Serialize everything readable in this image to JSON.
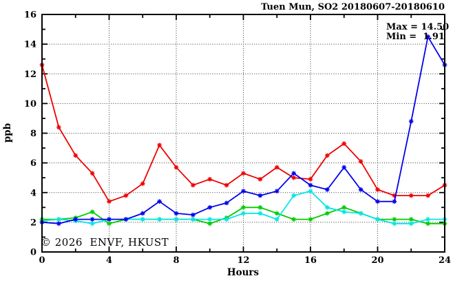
{
  "watermark": {
    "text": "© 2026  ENVF, HKUST",
    "color": "#d9d9d9"
  },
  "chart_data": {
    "type": "line",
    "title": "Tuen Mun, SO2 20180607-20180610",
    "xlabel": "Hours",
    "ylabel": "ppb",
    "xlim": [
      0,
      24
    ],
    "ylim": [
      0,
      16
    ],
    "x_major_ticks": [
      0,
      4,
      8,
      12,
      16,
      20,
      24
    ],
    "x_minor_tick_step": 2,
    "y_major_ticks": [
      0,
      2,
      4,
      6,
      8,
      10,
      12,
      14,
      16
    ],
    "y_minor_tick_step": 1,
    "grid": {
      "style": "dotted",
      "x_lines": [
        4,
        8,
        12,
        16,
        20
      ],
      "y_lines": [
        2,
        4,
        6,
        8,
        10,
        12,
        14
      ]
    },
    "legend": "none",
    "stats": {
      "max": 14.5,
      "min": 1.91
    },
    "annotations": {
      "max_text": "Max = 14.50",
      "min_text": "Min =  1.91"
    },
    "x": [
      0,
      1,
      2,
      3,
      4,
      5,
      6,
      7,
      8,
      9,
      10,
      11,
      12,
      13,
      14,
      15,
      16,
      17,
      18,
      19,
      20,
      21,
      22,
      23,
      24
    ],
    "series": [
      {
        "name": "red",
        "color": "#ee0000",
        "values": [
          12.6,
          8.4,
          6.5,
          5.3,
          3.4,
          3.8,
          4.6,
          7.2,
          5.7,
          4.5,
          4.9,
          4.5,
          5.3,
          4.9,
          5.7,
          5.0,
          4.9,
          6.5,
          7.3,
          6.1,
          4.2,
          3.8,
          3.8,
          3.8,
          4.5
        ]
      },
      {
        "name": "green",
        "color": "#00cc00",
        "values": [
          2.2,
          2.2,
          2.3,
          2.7,
          1.91,
          2.2,
          2.2,
          2.2,
          2.2,
          2.2,
          1.91,
          2.3,
          3.0,
          3.0,
          2.6,
          2.2,
          2.2,
          2.6,
          3.0,
          2.6,
          2.2,
          2.2,
          2.2,
          1.91,
          1.91
        ]
      },
      {
        "name": "cyan",
        "color": "#00e6e6",
        "values": [
          2.1,
          2.2,
          2.1,
          1.91,
          2.2,
          2.2,
          2.2,
          2.2,
          2.2,
          2.2,
          2.2,
          2.2,
          2.6,
          2.6,
          2.2,
          3.8,
          4.1,
          3.0,
          2.7,
          2.6,
          2.2,
          1.91,
          1.91,
          2.2,
          2.2
        ]
      },
      {
        "name": "blue",
        "color": "#0000ee",
        "values": [
          2.0,
          1.91,
          2.2,
          2.2,
          2.2,
          2.2,
          2.6,
          3.4,
          2.6,
          2.5,
          3.0,
          3.3,
          4.1,
          3.8,
          4.1,
          5.3,
          4.5,
          4.2,
          5.7,
          4.2,
          3.4,
          3.4,
          8.8,
          14.5,
          12.6
        ]
      }
    ]
  }
}
